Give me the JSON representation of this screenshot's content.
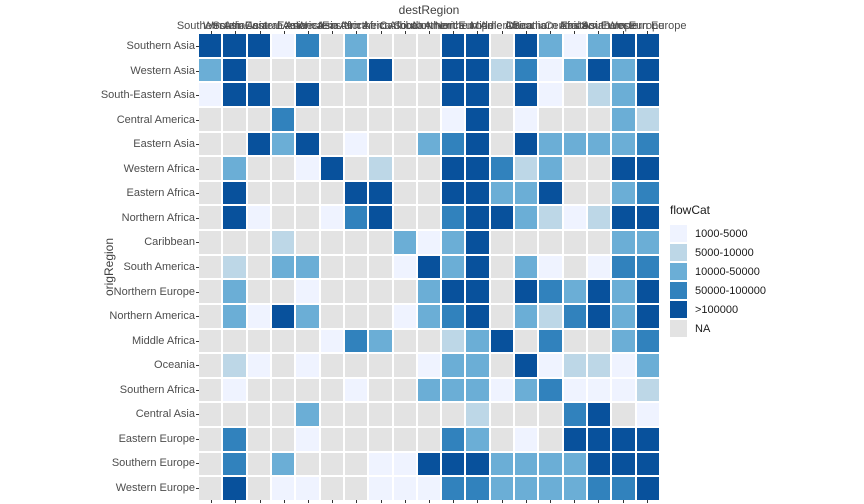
{
  "chart_data": {
    "type": "heatmap",
    "x_axis_title": "destRegion",
    "y_axis_title": "origRegion",
    "x_categories": [
      "Southern Asia",
      "Western Asia",
      "South-Eastern Asia",
      "Central America",
      "Eastern Asia",
      "Western Africa",
      "Eastern Africa",
      "Northern Africa",
      "Caribbean",
      "South America",
      "Northern Europe",
      "Northern America",
      "Middle Africa",
      "Oceania",
      "Southern Africa",
      "Central Asia",
      "Eastern Europe",
      "Southern Europe",
      "Western Europe"
    ],
    "y_categories": [
      "Southern Asia",
      "Western Asia",
      "South-Eastern Asia",
      "Central America",
      "Eastern Asia",
      "Western Africa",
      "Eastern Africa",
      "Northern Africa",
      "Caribbean",
      "South America",
      "Northern Europe",
      "Northern America",
      "Middle Africa",
      "Oceania",
      "Southern Africa",
      "Central Asia",
      "Eastern Europe",
      "Southern Europe",
      "Western Europe"
    ],
    "value_labels": [
      "NA",
      "1000-5000",
      "5000-10000",
      "10000-50000",
      "50000-100000",
      ">100000"
    ],
    "colors": [
      "#E3E3E3",
      "#EFF3FF",
      "#BDD7E7",
      "#6BAED6",
      "#3182BD",
      "#08519C"
    ],
    "legend": {
      "title": "flowCat",
      "position": "right",
      "entries": [
        {
          "label": "1000-5000",
          "color": "#EFF3FF"
        },
        {
          "label": "5000-10000",
          "color": "#BDD7E7"
        },
        {
          "label": "10000-50000",
          "color": "#6BAED6"
        },
        {
          "label": "50000-100000",
          "color": "#3182BD"
        },
        {
          "label": ">100000",
          "color": "#08519C"
        },
        {
          "label": "NA",
          "color": "#E3E3E3"
        }
      ]
    },
    "matrix": [
      [
        5,
        5,
        5,
        1,
        4,
        0,
        3,
        0,
        0,
        0,
        5,
        5,
        0,
        5,
        3,
        1,
        3,
        5,
        5
      ],
      [
        3,
        5,
        0,
        0,
        0,
        0,
        3,
        5,
        0,
        0,
        5,
        5,
        2,
        4,
        1,
        3,
        5,
        3,
        5
      ],
      [
        1,
        5,
        5,
        0,
        5,
        0,
        0,
        0,
        0,
        0,
        5,
        5,
        0,
        5,
        1,
        0,
        2,
        3,
        5
      ],
      [
        0,
        0,
        0,
        4,
        0,
        0,
        0,
        0,
        0,
        0,
        1,
        5,
        0,
        1,
        0,
        0,
        0,
        3,
        2
      ],
      [
        0,
        0,
        5,
        3,
        5,
        0,
        1,
        0,
        0,
        3,
        4,
        5,
        0,
        5,
        3,
        3,
        3,
        3,
        4
      ],
      [
        0,
        3,
        0,
        0,
        1,
        5,
        0,
        2,
        0,
        0,
        5,
        5,
        4,
        2,
        3,
        0,
        0,
        5,
        5
      ],
      [
        0,
        5,
        0,
        0,
        0,
        0,
        5,
        5,
        0,
        0,
        5,
        5,
        3,
        3,
        5,
        0,
        0,
        3,
        4
      ],
      [
        0,
        5,
        1,
        0,
        0,
        1,
        4,
        5,
        0,
        0,
        4,
        5,
        5,
        3,
        2,
        1,
        2,
        5,
        5
      ],
      [
        0,
        0,
        0,
        2,
        0,
        0,
        0,
        0,
        3,
        1,
        3,
        5,
        0,
        0,
        0,
        0,
        0,
        3,
        3
      ],
      [
        0,
        2,
        0,
        3,
        3,
        0,
        0,
        0,
        1,
        5,
        3,
        5,
        0,
        3,
        1,
        0,
        1,
        4,
        4
      ],
      [
        0,
        3,
        0,
        0,
        1,
        0,
        0,
        0,
        0,
        3,
        5,
        5,
        0,
        5,
        4,
        3,
        5,
        3,
        5
      ],
      [
        0,
        3,
        1,
        5,
        3,
        0,
        0,
        0,
        1,
        3,
        4,
        5,
        0,
        3,
        2,
        4,
        5,
        3,
        5
      ],
      [
        0,
        0,
        0,
        0,
        0,
        1,
        4,
        3,
        0,
        0,
        2,
        3,
        5,
        0,
        4,
        0,
        0,
        3,
        4
      ],
      [
        0,
        2,
        1,
        0,
        1,
        0,
        0,
        0,
        0,
        1,
        3,
        3,
        0,
        5,
        1,
        2,
        2,
        1,
        3
      ],
      [
        0,
        1,
        0,
        0,
        0,
        0,
        1,
        0,
        0,
        3,
        3,
        3,
        1,
        3,
        4,
        1,
        1,
        1,
        2
      ],
      [
        0,
        0,
        0,
        0,
        3,
        0,
        0,
        0,
        0,
        0,
        0,
        2,
        0,
        0,
        0,
        4,
        5,
        0,
        1
      ],
      [
        0,
        4,
        0,
        0,
        1,
        0,
        0,
        0,
        0,
        0,
        4,
        3,
        0,
        1,
        0,
        5,
        5,
        5,
        5
      ],
      [
        0,
        4,
        0,
        3,
        0,
        0,
        0,
        1,
        1,
        5,
        5,
        5,
        3,
        3,
        3,
        3,
        5,
        5,
        5
      ],
      [
        0,
        5,
        0,
        1,
        1,
        0,
        0,
        1,
        1,
        1,
        4,
        4,
        3,
        3,
        3,
        3,
        4,
        4,
        5
      ]
    ]
  }
}
